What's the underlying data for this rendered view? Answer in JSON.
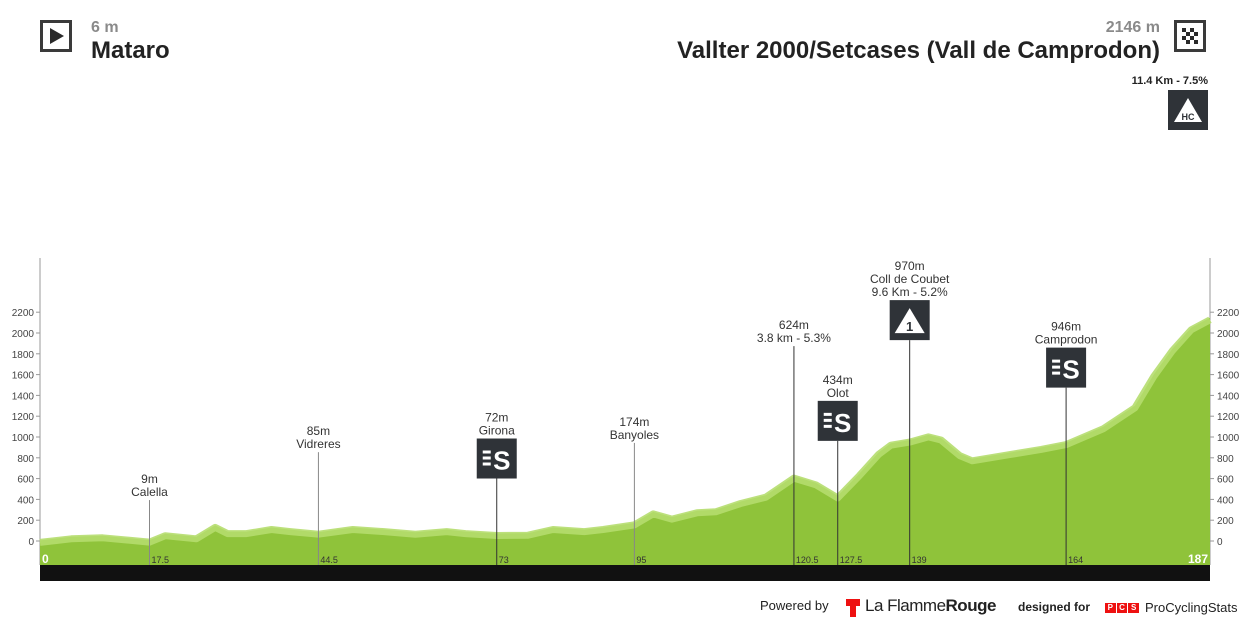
{
  "start": {
    "altitude": "6 m",
    "name": "Mataro",
    "icon": "play-icon"
  },
  "finish": {
    "altitude": "2146 m",
    "name": "Vallter 2000/Setcases (Vall de Camprodon)",
    "icon": "checkered-flag-icon"
  },
  "final_climb": {
    "stats": "11.4 Km - 7.5%",
    "category": "HC"
  },
  "footer": {
    "powered_by": "Powered by",
    "lfr_part1": "La Flamme",
    "lfr_part2": "Rouge",
    "designed_for": "designed for",
    "pcs_letters": [
      "P",
      "C",
      "S"
    ],
    "pcs_name": "ProCyclingStats"
  },
  "colors": {
    "terrain": "#8fc33a",
    "terrain_highlight": "#b5dd6e",
    "axis_bar": "#111111",
    "badge": "#2f3338",
    "accent_red": "#e11"
  },
  "chart_data": {
    "type": "area",
    "x": [
      0,
      5,
      10,
      17.5,
      20,
      25,
      28,
      30,
      33,
      37,
      40,
      44.5,
      50,
      55,
      60,
      65,
      68,
      73,
      78,
      82,
      87,
      90,
      95,
      98,
      101,
      105,
      108,
      112,
      116,
      120.5,
      124,
      127.5,
      131,
      134,
      136,
      139,
      142,
      144,
      147,
      149,
      155,
      160,
      164,
      170,
      175,
      178,
      181,
      184,
      187
    ],
    "y": [
      6,
      40,
      50,
      9,
      70,
      40,
      150,
      90,
      90,
      130,
      110,
      85,
      130,
      110,
      85,
      110,
      90,
      72,
      75,
      130,
      110,
      130,
      174,
      280,
      230,
      290,
      300,
      380,
      440,
      624,
      560,
      434,
      650,
      850,
      940,
      970,
      1020,
      990,
      840,
      790,
      850,
      900,
      946,
      1100,
      1300,
      1600,
      1850,
      2050,
      2146
    ],
    "xlim": [
      0,
      187
    ],
    "ylim": [
      -100,
      2200
    ],
    "x_ticks": [
      0,
      17.5,
      44.5,
      73,
      95,
      120.5,
      127.5,
      139,
      164,
      187
    ],
    "x_tick_labels": [
      "0",
      "17.5",
      "44.5",
      "73",
      "95",
      "120.5",
      "127.5",
      "139",
      "164",
      "187"
    ],
    "y_ticks": [
      0,
      200,
      400,
      600,
      800,
      1000,
      1200,
      1400,
      1600,
      1800,
      2000,
      2200
    ],
    "grid": false,
    "markers": [
      {
        "km": 17.5,
        "alt": 9,
        "lines": [
          "9m",
          "Calella"
        ],
        "badge": null
      },
      {
        "km": 44.5,
        "alt": 85,
        "lines": [
          "85m",
          "Vidreres"
        ],
        "badge": null
      },
      {
        "km": 73,
        "alt": 72,
        "lines": [
          "72m",
          "Girona"
        ],
        "badge": "S"
      },
      {
        "km": 95,
        "alt": 174,
        "lines": [
          "174m",
          "Banyoles"
        ],
        "badge": null
      },
      {
        "km": 120.5,
        "alt": 624,
        "lines": [
          "624m",
          "3.8 km - 5.3%"
        ],
        "badge": null
      },
      {
        "km": 127.5,
        "alt": 434,
        "lines": [
          "434m",
          "Olot"
        ],
        "badge": "S"
      },
      {
        "km": 139,
        "alt": 970,
        "lines": [
          "970m",
          "Coll de Coubet",
          "9.6 Km - 5.2%"
        ],
        "badge": "1"
      },
      {
        "km": 164,
        "alt": 946,
        "lines": [
          "946m",
          "Camprodon"
        ],
        "badge": "S"
      }
    ]
  }
}
